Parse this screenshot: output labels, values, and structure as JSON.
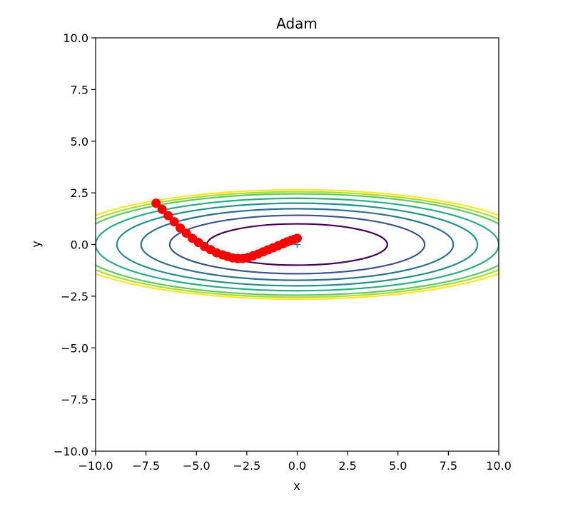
{
  "chart_data": {
    "type": "line",
    "title": "Adam",
    "xlabel": "x",
    "ylabel": "y",
    "xlim": [
      -10.0,
      10.0
    ],
    "ylim": [
      -10.0,
      10.0
    ],
    "xticks": [
      "−10.0",
      "−7.5",
      "−5.0",
      "−2.5",
      "0.0",
      "2.5",
      "5.0",
      "7.5",
      "10.0"
    ],
    "yticks": [
      "−10.0",
      "−7.5",
      "−5.0",
      "−2.5",
      "0.0",
      "2.5",
      "5.0",
      "7.5",
      "10.0"
    ],
    "xtick_values": [
      -10,
      -7.5,
      -5,
      -2.5,
      0,
      2.5,
      5,
      7.5,
      10
    ],
    "ytick_values": [
      -10,
      -7.5,
      -5,
      -2.5,
      0,
      2.5,
      5,
      7.5,
      10
    ],
    "grid": false,
    "contour": {
      "function": "x^2/20 + y^2",
      "levels": [
        1,
        2,
        3,
        4,
        5,
        6,
        6.5,
        7
      ],
      "colors": [
        "#440154",
        "#3b528b",
        "#2c728e",
        "#21918c",
        "#27ad81",
        "#5ec962",
        "#aadc32",
        "#fde725"
      ]
    },
    "minimum_marker": {
      "x": 0.0,
      "y": 0.0,
      "symbol": "+",
      "color": "#1f77b4"
    },
    "path": {
      "color": "#ff0000",
      "points": [
        [
          -7.0,
          2.0
        ],
        [
          -6.7,
          1.7
        ],
        [
          -6.4,
          1.4
        ],
        [
          -6.1,
          1.1
        ],
        [
          -5.8,
          0.8
        ],
        [
          -5.5,
          0.55
        ],
        [
          -5.2,
          0.3
        ],
        [
          -4.9,
          0.1
        ],
        [
          -4.6,
          -0.1
        ],
        [
          -4.3,
          -0.25
        ],
        [
          -4.0,
          -0.4
        ],
        [
          -3.7,
          -0.5
        ],
        [
          -3.45,
          -0.58
        ],
        [
          -3.2,
          -0.65
        ],
        [
          -2.95,
          -0.68
        ],
        [
          -2.7,
          -0.68
        ],
        [
          -2.45,
          -0.63
        ],
        [
          -2.2,
          -0.55
        ],
        [
          -1.95,
          -0.46
        ],
        [
          -1.7,
          -0.36
        ],
        [
          -1.45,
          -0.26
        ],
        [
          -1.2,
          -0.16
        ],
        [
          -0.95,
          -0.06
        ],
        [
          -0.7,
          0.04
        ],
        [
          -0.5,
          0.13
        ],
        [
          -0.3,
          0.2
        ],
        [
          -0.15,
          0.25
        ],
        [
          0.0,
          0.3
        ]
      ]
    }
  }
}
